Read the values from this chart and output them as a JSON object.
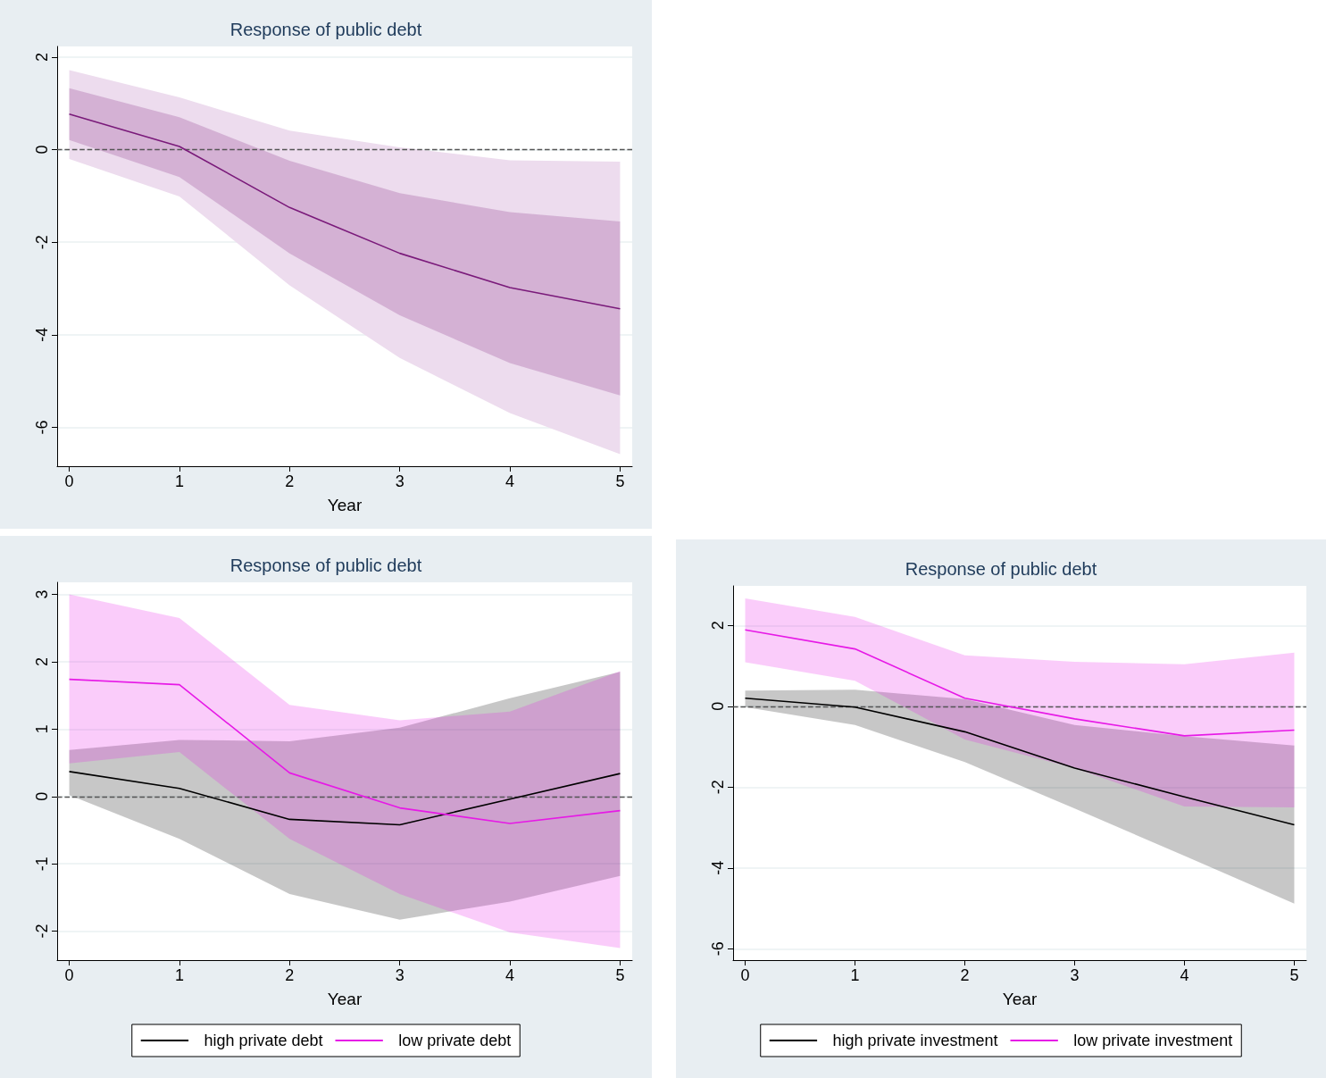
{
  "chart_data": [
    {
      "type": "line",
      "title": "Response of public debt",
      "xlabel": "Year",
      "xlim": [
        -0.11,
        5.11
      ],
      "xticks": [
        0,
        1,
        2,
        3,
        4,
        5
      ],
      "ylim": [
        -6.84,
        2.23
      ],
      "yticks": [
        -6,
        -4,
        -2,
        0,
        2
      ],
      "grid": "y",
      "legend": false,
      "marker": "none",
      "line_style": "solid",
      "x": [
        0,
        1,
        2,
        3,
        4,
        5
      ],
      "ref_lines": [
        {
          "axis": "y",
          "value": 0,
          "color": "#555555",
          "line_style": "dashed"
        }
      ],
      "series": [
        {
          "color": "#eddcee",
          "values": [
            null,
            null,
            null,
            null,
            null,
            null
          ],
          "lower": [
            -0.2,
            -1.01,
            -2.93,
            -4.5,
            -5.69,
            -6.58
          ],
          "upper": [
            1.72,
            1.13,
            0.41,
            0.05,
            -0.23,
            -0.26
          ]
        },
        {
          "color": "#7a1a7a",
          "values": [
            0.77,
            0.07,
            -1.25,
            -2.24,
            -2.98,
            -3.44
          ],
          "lower": [
            0.21,
            -0.59,
            -2.24,
            -3.58,
            -4.61,
            -5.31
          ],
          "upper": [
            1.33,
            0.7,
            -0.24,
            -0.94,
            -1.35,
            -1.55
          ]
        }
      ]
    },
    {
      "type": "line",
      "title": "Response of public debt",
      "xlabel": "Year",
      "xlim": [
        -0.11,
        5.11
      ],
      "xticks": [
        0,
        1,
        2,
        3,
        4,
        5
      ],
      "ylim": [
        -2.43,
        3.18
      ],
      "yticks": [
        -2,
        -1,
        0,
        1,
        2,
        3
      ],
      "grid": "y",
      "legend": "bottom",
      "marker": "none",
      "line_style": "solid",
      "x": [
        0,
        1,
        2,
        3,
        4,
        5
      ],
      "ref_lines": [
        {
          "axis": "y",
          "value": 0,
          "color": "#555555",
          "line_style": "dashed"
        }
      ],
      "series": [
        {
          "name": "high private debt",
          "color": "#000000",
          "values": [
            0.37,
            0.12,
            -0.34,
            -0.42,
            -0.04,
            0.34
          ],
          "lower": [
            0.02,
            -0.63,
            -1.45,
            -1.83,
            -1.56,
            -1.18
          ],
          "upper": [
            0.69,
            0.84,
            0.82,
            1.02,
            1.46,
            1.85
          ]
        },
        {
          "name": "low private debt",
          "color": "#e619e6",
          "values": [
            1.74,
            1.66,
            0.35,
            -0.17,
            -0.4,
            -0.21
          ],
          "lower": [
            0.49,
            0.66,
            -0.63,
            -1.45,
            -2.02,
            -2.25
          ],
          "upper": [
            3.0,
            2.65,
            1.36,
            1.13,
            1.26,
            1.86
          ]
        }
      ]
    },
    {
      "type": "line",
      "title": "Response of public debt",
      "xlabel": "Year",
      "xlim": [
        -0.11,
        5.11
      ],
      "xticks": [
        0,
        1,
        2,
        3,
        4,
        5
      ],
      "ylim": [
        -6.28,
        2.98
      ],
      "yticks": [
        -6,
        -4,
        -2,
        0,
        2
      ],
      "grid": "y",
      "legend": "bottom",
      "marker": "none",
      "line_style": "solid",
      "x": [
        0,
        1,
        2,
        3,
        4,
        5
      ],
      "ref_lines": [
        {
          "axis": "y",
          "value": 0,
          "color": "#555555",
          "line_style": "dashed"
        }
      ],
      "series": [
        {
          "name": "high private investment",
          "color": "#000000",
          "values": [
            0.2,
            -0.02,
            -0.63,
            -1.53,
            -2.24,
            -2.93
          ],
          "lower": [
            -0.02,
            -0.46,
            -1.38,
            -2.53,
            -3.7,
            -4.88
          ],
          "upper": [
            0.39,
            0.41,
            0.18,
            -0.46,
            -0.74,
            -0.97
          ]
        },
        {
          "name": "low private investment",
          "color": "#e619e6",
          "values": [
            1.89,
            1.42,
            0.2,
            -0.31,
            -0.73,
            -0.59
          ],
          "lower": [
            1.09,
            0.63,
            -0.82,
            -1.53,
            -2.48,
            -2.5
          ],
          "upper": [
            2.67,
            2.21,
            1.26,
            1.1,
            1.04,
            1.33
          ]
        }
      ]
    }
  ]
}
